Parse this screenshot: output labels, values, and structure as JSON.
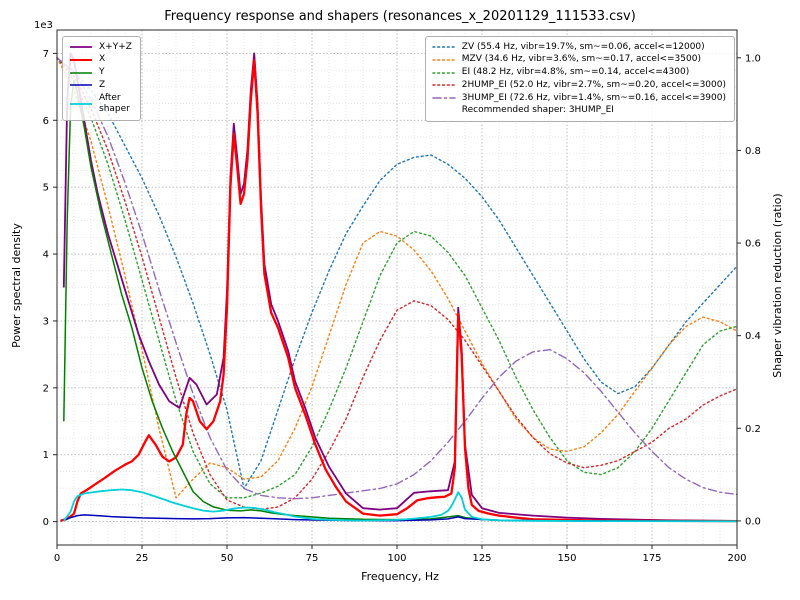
{
  "chart_data": {
    "type": "line",
    "title": "Frequency response and shapers (resonances_x_20201129_111533.csv)",
    "xlabel": "Frequency, Hz",
    "ylabel_left": "Power spectral density",
    "ylabel_right": "Shaper vibration reduction (ratio)",
    "y_left_offset_text": "1e3",
    "xlim": [
      0,
      200
    ],
    "ylim_left": [
      -350,
      7350
    ],
    "ylim_right": [
      -0.052,
      1.06
    ],
    "x_ticks": [
      0,
      25,
      50,
      75,
      100,
      125,
      150,
      175,
      200
    ],
    "y_left_ticks_1e3": [
      0,
      1,
      2,
      3,
      4,
      5,
      6,
      7
    ],
    "y_right_ticks": [
      "0.0",
      "0.2",
      "0.4",
      "0.6",
      "0.8",
      "1.0"
    ],
    "grid": {
      "major": true,
      "minor": true
    },
    "legend_left_position": "upper left",
    "legend_right_position": "upper right",
    "recommendation": "Recommended shaper: 3HUMP_EI",
    "psd_series": [
      {
        "name": "X+Y+Z",
        "color": "#7f007f",
        "linewidth": 1.8,
        "linestyle": "solid",
        "axis": "left",
        "x": [
          2,
          3,
          4,
          5,
          6,
          8,
          10,
          12,
          15,
          18,
          21,
          24,
          27,
          30,
          33,
          36,
          39,
          41,
          44,
          47,
          49,
          50,
          51,
          52,
          53,
          54,
          55,
          56,
          57,
          58,
          59,
          60,
          61,
          63,
          65,
          68,
          70,
          73,
          76,
          80,
          85,
          90,
          95,
          100,
          105,
          109,
          112,
          115,
          117,
          118,
          119,
          120,
          122,
          125,
          130,
          140,
          150,
          160,
          180,
          200
        ],
        "y": [
          3500,
          6300,
          7000,
          6900,
          6600,
          6000,
          5400,
          4900,
          4300,
          3800,
          3300,
          2800,
          2400,
          2050,
          1800,
          1700,
          2150,
          2050,
          1750,
          1900,
          2450,
          3450,
          5150,
          5950,
          5450,
          4900,
          5050,
          5550,
          6450,
          7000,
          6250,
          4850,
          3850,
          3250,
          3000,
          2550,
          2100,
          1700,
          1250,
          820,
          420,
          200,
          180,
          200,
          430,
          450,
          460,
          470,
          900,
          3200,
          2600,
          1150,
          400,
          200,
          130,
          90,
          60,
          40,
          20,
          10
        ]
      },
      {
        "name": "X",
        "color": "#ff0000",
        "linewidth": 2.3,
        "linestyle": "solid",
        "axis": "left",
        "x": [
          1,
          3,
          5,
          6,
          7,
          9,
          11,
          14,
          17,
          20,
          22,
          24,
          26,
          27,
          29,
          31,
          33,
          35,
          37,
          38,
          39,
          40,
          42,
          44,
          46,
          48,
          49,
          50,
          51,
          52,
          53,
          54,
          55,
          56,
          57,
          58,
          59,
          60,
          61,
          63,
          65,
          68,
          70,
          73,
          76,
          79,
          82,
          85,
          90,
          95,
          100,
          103,
          106,
          109,
          112,
          114,
          116,
          117,
          118,
          119,
          120,
          121,
          122,
          124,
          127,
          130,
          135,
          140,
          150,
          160,
          180,
          200
        ],
        "y": [
          10,
          40,
          120,
          300,
          420,
          480,
          550,
          650,
          760,
          850,
          900,
          1000,
          1200,
          1290,
          1150,
          970,
          900,
          960,
          1150,
          1600,
          1850,
          1800,
          1500,
          1380,
          1500,
          1800,
          2200,
          3200,
          5000,
          5800,
          5300,
          4750,
          4900,
          5400,
          6300,
          6900,
          6100,
          4700,
          3700,
          3120,
          2900,
          2450,
          2000,
          1600,
          1150,
          780,
          520,
          300,
          120,
          90,
          110,
          200,
          320,
          350,
          365,
          370,
          420,
          800,
          3100,
          2500,
          1100,
          500,
          250,
          160,
          120,
          90,
          60,
          35,
          25,
          15,
          10,
          8
        ]
      },
      {
        "name": "Y",
        "color": "#007f00",
        "linewidth": 1.5,
        "linestyle": "solid",
        "axis": "left",
        "x": [
          2,
          3,
          4,
          5,
          6,
          8,
          10,
          13,
          16,
          19,
          22,
          25,
          28,
          31,
          34,
          37,
          40,
          43,
          46,
          50,
          54,
          57,
          60,
          63,
          66,
          70,
          75,
          80,
          90,
          100,
          110,
          115,
          118,
          120,
          125,
          130,
          140,
          160,
          200
        ],
        "y": [
          1500,
          4500,
          6200,
          6600,
          6400,
          5900,
          5300,
          4600,
          4000,
          3400,
          2900,
          2300,
          1800,
          1400,
          1050,
          750,
          450,
          300,
          220,
          170,
          160,
          175,
          160,
          130,
          110,
          90,
          70,
          50,
          35,
          30,
          40,
          70,
          90,
          60,
          30,
          20,
          12,
          8,
          5
        ]
      },
      {
        "name": "Z",
        "color": "#0000b8",
        "linewidth": 1.5,
        "linestyle": "solid",
        "axis": "left",
        "x": [
          2,
          4,
          6,
          8,
          10,
          13,
          16,
          20,
          25,
          30,
          35,
          40,
          45,
          50,
          55,
          60,
          65,
          70,
          80,
          90,
          100,
          110,
          115,
          118,
          120,
          130,
          150,
          200
        ],
        "y": [
          20,
          60,
          90,
          100,
          95,
          85,
          75,
          65,
          55,
          50,
          45,
          40,
          45,
          55,
          60,
          50,
          40,
          30,
          20,
          15,
          15,
          25,
          40,
          70,
          45,
          20,
          10,
          5
        ]
      },
      {
        "name": "After shaper",
        "legend_label": "After\nshaper",
        "color": "#00d0d8",
        "linewidth": 1.8,
        "linestyle": "solid",
        "axis": "left",
        "x": [
          2,
          4,
          5,
          6,
          8,
          10,
          13,
          16,
          19,
          22,
          25,
          28,
          31,
          34,
          37,
          40,
          43,
          46,
          49,
          52,
          55,
          58,
          61,
          64,
          67,
          70,
          75,
          80,
          90,
          100,
          105,
          110,
          113,
          115,
          116,
          117,
          118,
          119,
          120,
          122,
          125,
          130,
          140,
          160,
          200
        ],
        "y": [
          10,
          150,
          300,
          380,
          420,
          435,
          455,
          470,
          480,
          470,
          440,
          390,
          340,
          285,
          240,
          200,
          165,
          150,
          165,
          195,
          210,
          205,
          180,
          140,
          110,
          75,
          40,
          25,
          15,
          25,
          45,
          70,
          100,
          160,
          230,
          330,
          440,
          360,
          180,
          70,
          35,
          20,
          12,
          8,
          5
        ]
      }
    ],
    "shaper_x": [
      0,
      5,
      10,
      15,
      20,
      25,
      30,
      35,
      40,
      45,
      50,
      55,
      60,
      65,
      70,
      75,
      80,
      85,
      90,
      95,
      100,
      105,
      110,
      115,
      120,
      125,
      130,
      135,
      140,
      145,
      150,
      155,
      160,
      165,
      170,
      175,
      180,
      185,
      190,
      195,
      200
    ],
    "shaper_series": [
      {
        "name": "ZV",
        "label": "ZV (55.4 Hz, vibr=19.7%, sm~=0.06, accel<=12000)",
        "color": "#1f77b4",
        "linestyle": "dotted",
        "axis": "right",
        "values": [
          1.0,
          0.97,
          0.93,
          0.88,
          0.81,
          0.74,
          0.66,
          0.57,
          0.47,
          0.36,
          0.24,
          0.07,
          0.13,
          0.24,
          0.35,
          0.45,
          0.54,
          0.62,
          0.68,
          0.735,
          0.77,
          0.785,
          0.79,
          0.77,
          0.74,
          0.7,
          0.65,
          0.59,
          0.53,
          0.47,
          0.41,
          0.35,
          0.3,
          0.275,
          0.29,
          0.33,
          0.38,
          0.43,
          0.47,
          0.51,
          0.55
        ]
      },
      {
        "name": "MZV",
        "label": "MZV (34.6 Hz, vibr=3.6%, sm~=0.17, accel<=3500)",
        "color": "#ff7f0e",
        "linestyle": "dotted",
        "axis": "right",
        "values": [
          1.0,
          0.93,
          0.82,
          0.68,
          0.53,
          0.37,
          0.2,
          0.05,
          0.09,
          0.125,
          0.115,
          0.09,
          0.095,
          0.13,
          0.2,
          0.29,
          0.4,
          0.51,
          0.6,
          0.625,
          0.615,
          0.585,
          0.54,
          0.48,
          0.41,
          0.34,
          0.28,
          0.22,
          0.18,
          0.155,
          0.15,
          0.16,
          0.19,
          0.23,
          0.28,
          0.33,
          0.38,
          0.42,
          0.44,
          0.43,
          0.41
        ]
      },
      {
        "name": "EI",
        "label": "EI (48.2 Hz, vibr=4.8%, sm~=0.14, accel<=4300)",
        "color": "#2ca02c",
        "linestyle": "dotted",
        "axis": "right",
        "values": [
          1.0,
          0.95,
          0.87,
          0.77,
          0.65,
          0.52,
          0.39,
          0.26,
          0.15,
          0.08,
          0.05,
          0.05,
          0.06,
          0.075,
          0.1,
          0.16,
          0.24,
          0.33,
          0.43,
          0.53,
          0.6,
          0.625,
          0.615,
          0.58,
          0.53,
          0.46,
          0.39,
          0.31,
          0.24,
          0.18,
          0.13,
          0.105,
          0.1,
          0.115,
          0.15,
          0.2,
          0.26,
          0.32,
          0.38,
          0.41,
          0.42
        ]
      },
      {
        "name": "2HUMP_EI",
        "label": "2HUMP_EI (52.0 Hz, vibr=2.7%, sm~=0.20, accel<=3000)",
        "color": "#d62728",
        "linestyle": "dotted",
        "axis": "right",
        "values": [
          1.0,
          0.96,
          0.89,
          0.8,
          0.69,
          0.57,
          0.44,
          0.31,
          0.19,
          0.1,
          0.045,
          0.03,
          0.025,
          0.03,
          0.05,
          0.09,
          0.15,
          0.22,
          0.31,
          0.39,
          0.455,
          0.475,
          0.465,
          0.435,
          0.39,
          0.335,
          0.28,
          0.225,
          0.18,
          0.145,
          0.125,
          0.115,
          0.12,
          0.13,
          0.15,
          0.17,
          0.2,
          0.22,
          0.25,
          0.27,
          0.285
        ]
      },
      {
        "name": "3HUMP_EI",
        "label": "3HUMP_EI (72.6 Hz, vibr=1.4%, sm~=0.16, accel<=3900)",
        "color": "#9467bd",
        "linestyle": "dashdot",
        "axis": "right",
        "values": [
          1.0,
          0.97,
          0.91,
          0.83,
          0.73,
          0.62,
          0.5,
          0.385,
          0.275,
          0.18,
          0.11,
          0.07,
          0.055,
          0.05,
          0.048,
          0.05,
          0.055,
          0.06,
          0.065,
          0.07,
          0.08,
          0.1,
          0.13,
          0.17,
          0.215,
          0.265,
          0.31,
          0.345,
          0.365,
          0.37,
          0.35,
          0.32,
          0.28,
          0.235,
          0.19,
          0.15,
          0.115,
          0.09,
          0.072,
          0.062,
          0.057
        ]
      }
    ]
  }
}
